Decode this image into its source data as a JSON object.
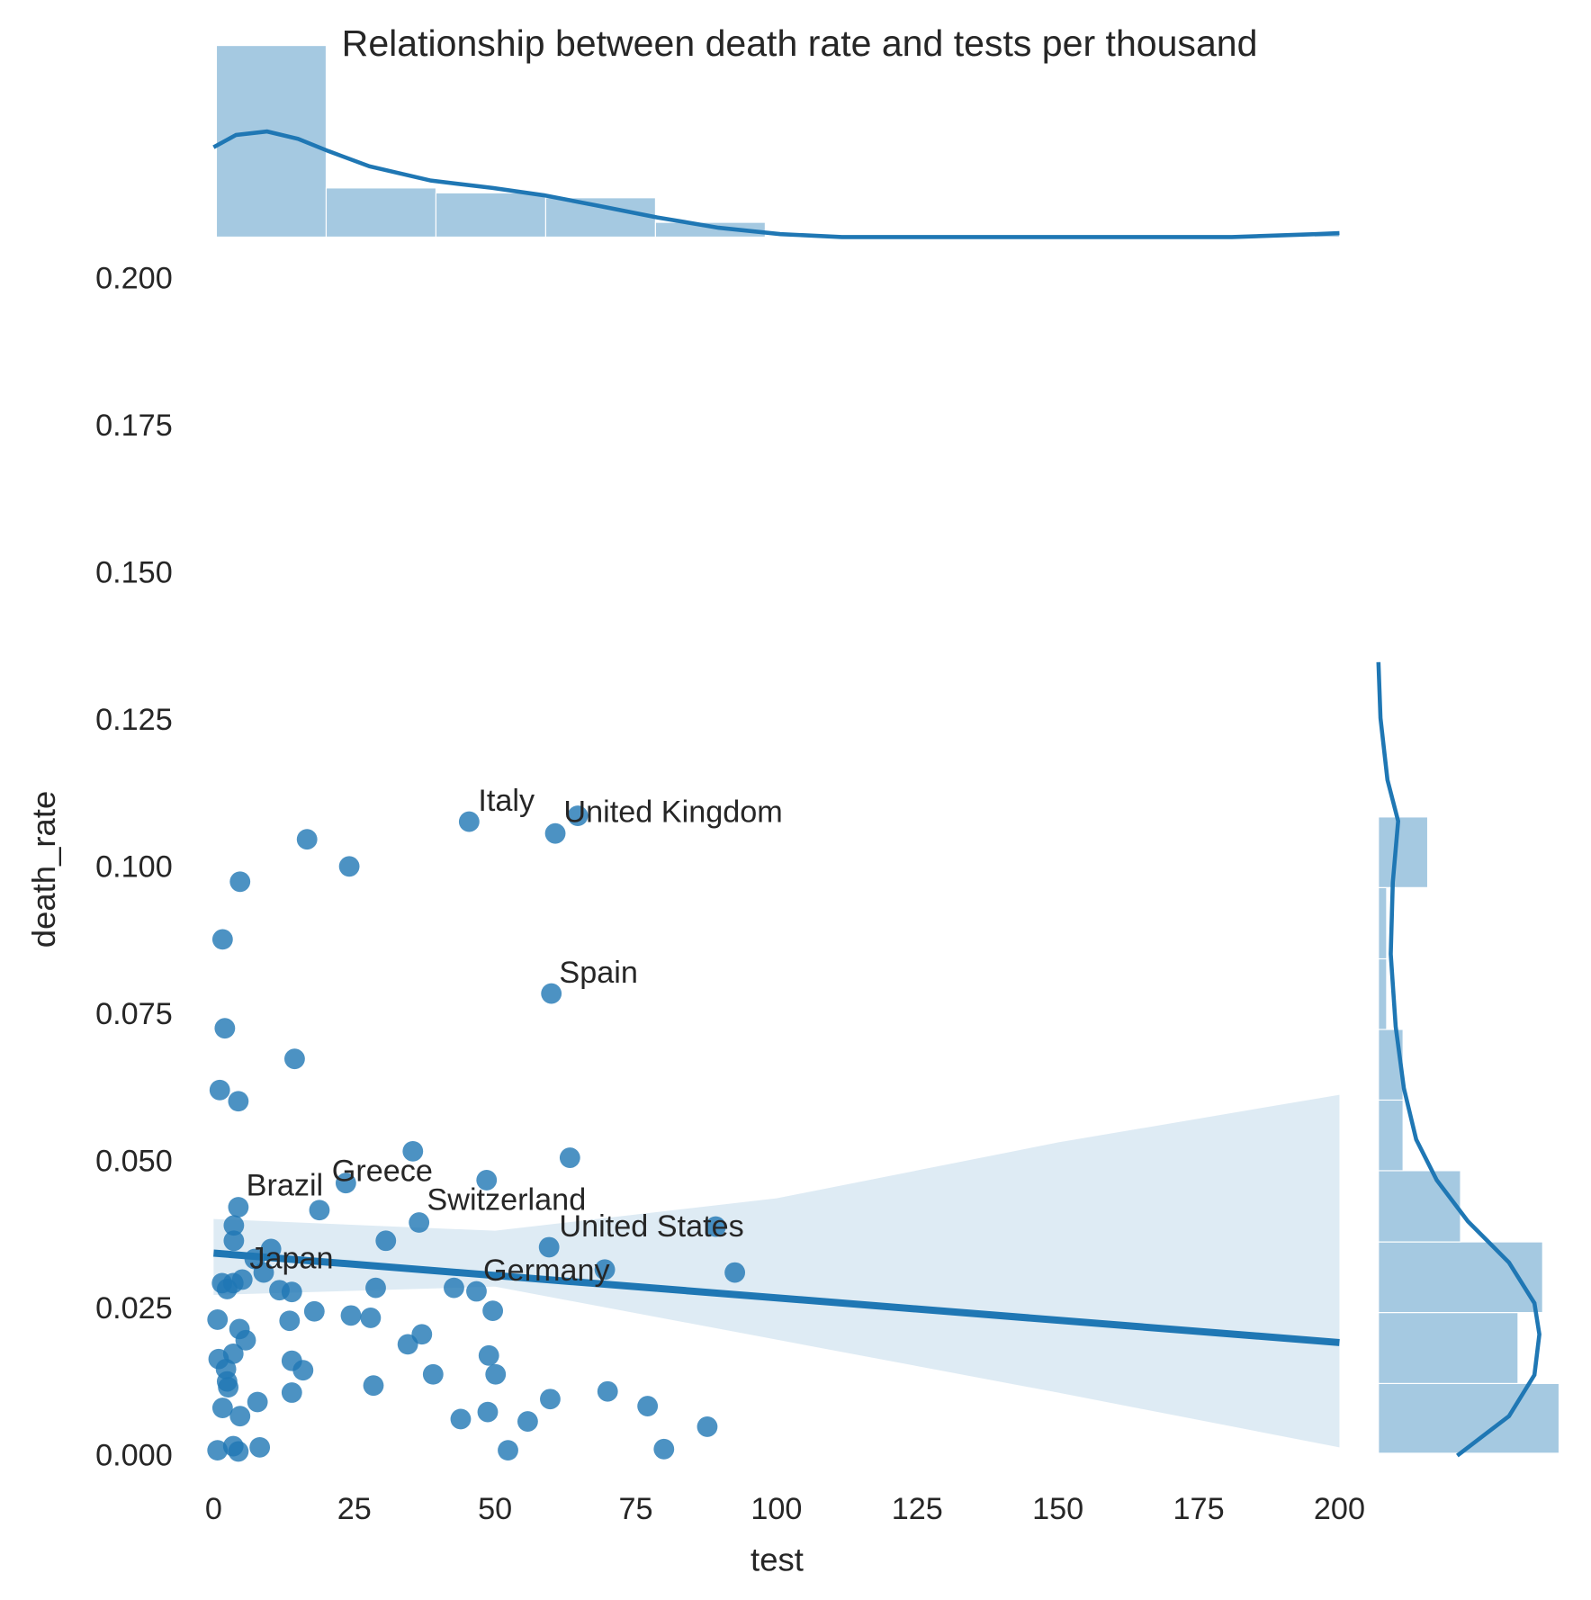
{
  "chart_data": [
    {
      "type": "scatter",
      "title": "Relationship between death rate and tests per thousand",
      "xlabel": "test",
      "ylabel": "death_rate",
      "color": "#1f77b4",
      "x": [
        45.4,
        60.7,
        64.7,
        16.6,
        24.1,
        4.7,
        1.6,
        60.0,
        2.0,
        14.4,
        1.1,
        4.4,
        35.4,
        63.3,
        48.5,
        23.5,
        4.4,
        18.8,
        3.6,
        36.5,
        89.2,
        30.6,
        3.6,
        59.6,
        10.2,
        69.5,
        92.6,
        7.3,
        8.9,
        5.1,
        1.5,
        3.5,
        2.4,
        11.7,
        13.9,
        28.8,
        42.7,
        46.7,
        49.6,
        17.9,
        24.4,
        27.9,
        13.5,
        0.7,
        4.6,
        5.7,
        37.0,
        34.5,
        3.5,
        48.9,
        0.9,
        13.9,
        15.9,
        2.2,
        50.1,
        39.0,
        2.4,
        2.6,
        28.4,
        70.0,
        13.9,
        59.8,
        7.8,
        77.1,
        1.6,
        48.7,
        4.7,
        43.9,
        55.8,
        87.7,
        8.2,
        3.5,
        52.3,
        80.0,
        0.7,
        4.4
      ],
      "y": [
        0.108,
        0.106,
        0.109,
        0.105,
        0.1004,
        0.0978,
        0.088,
        0.0788,
        0.0729,
        0.0677,
        0.0624,
        0.0605,
        0.052,
        0.0509,
        0.0471,
        0.0466,
        0.0425,
        0.042,
        0.0394,
        0.0399,
        0.0392,
        0.0368,
        0.0368,
        0.0357,
        0.0354,
        0.0319,
        0.0314,
        0.0337,
        0.0314,
        0.0302,
        0.0296,
        0.0296,
        0.0286,
        0.0284,
        0.0281,
        0.0288,
        0.0288,
        0.0282,
        0.0249,
        0.0248,
        0.0241,
        0.0237,
        0.0232,
        0.0234,
        0.0218,
        0.0199,
        0.0209,
        0.0192,
        0.0176,
        0.0173,
        0.0167,
        0.0164,
        0.0148,
        0.015,
        0.0141,
        0.0141,
        0.0129,
        0.0119,
        0.0122,
        0.0112,
        0.011,
        0.0099,
        0.0094,
        0.0087,
        0.0084,
        0.0077,
        0.007,
        0.0065,
        0.0061,
        0.0052,
        0.0017,
        0.0019,
        0.0012,
        0.0014,
        0.0012,
        0.001
      ],
      "annotations": [
        {
          "text": "Italy",
          "x": 47.0,
          "y": 0.1112
        },
        {
          "text": "United Kingdom",
          "x": 62.2,
          "y": 0.1093
        },
        {
          "text": "Spain",
          "x": 61.4,
          "y": 0.082
        },
        {
          "text": "Greece",
          "x": 21.0,
          "y": 0.0483
        },
        {
          "text": "Brazil",
          "x": 5.8,
          "y": 0.0459
        },
        {
          "text": "Switzerland",
          "x": 37.9,
          "y": 0.0434
        },
        {
          "text": "United States",
          "x": 61.4,
          "y": 0.0389
        },
        {
          "text": "Japan",
          "x": 6.4,
          "y": 0.0335
        },
        {
          "text": "Germany",
          "x": 47.9,
          "y": 0.0314
        }
      ],
      "regression": {
        "x": [
          0,
          200
        ],
        "y": [
          0.0347,
          0.0195
        ],
        "ci_x": [
          0,
          50,
          100,
          150,
          200
        ],
        "ci_upper": [
          0.0405,
          0.0385,
          0.044,
          0.0535,
          0.0616
        ],
        "ci_lower": [
          0.0276,
          0.029,
          0.02,
          0.011,
          0.0017
        ]
      },
      "xlim": [
        0,
        200
      ],
      "xticks": [
        0,
        25,
        50,
        75,
        100,
        125,
        150,
        175,
        200
      ],
      "ylim": [
        0,
        0.2
      ],
      "yticks": [
        {
          "value": 0,
          "label": "0.000"
        },
        {
          "value": 0.025,
          "label": "0.025"
        },
        {
          "value": 0.05,
          "label": "0.050"
        },
        {
          "value": 0.075,
          "label": "0.075"
        },
        {
          "value": 0.1,
          "label": "0.100"
        },
        {
          "value": 0.125,
          "label": "0.125"
        },
        {
          "value": 0.15,
          "label": "0.150"
        },
        {
          "value": 0.175,
          "label": "0.175"
        },
        {
          "value": 0.2,
          "label": "0.200"
        }
      ]
    },
    {
      "type": "histogram",
      "orientation": "vertical",
      "color": "#1f77b4",
      "bins": [
        0.5,
        20,
        39.5,
        59,
        78.5,
        98,
        117.5,
        137,
        156.5,
        176,
        195.5,
        200
      ],
      "counts": [
        39,
        10,
        9,
        8,
        3,
        0,
        0,
        0,
        0,
        0,
        1
      ],
      "ylim": [
        0,
        42
      ],
      "kde_x": [
        0,
        4,
        9.5,
        15,
        20.4,
        27.7,
        38.6,
        49.6,
        58.7,
        67.8,
        78.8,
        89.7,
        100.7,
        111.6,
        144.4,
        180.9,
        195.8,
        200
      ],
      "kde_y": [
        18.3,
        20.8,
        21.5,
        20,
        17.5,
        14.4,
        11.5,
        10,
        8.5,
        6.5,
        4,
        1.9,
        0.6,
        0,
        0,
        0,
        0.6,
        0.8
      ]
    },
    {
      "type": "histogram",
      "orientation": "horizontal",
      "color": "#1f77b4",
      "bins": [
        0.0007,
        0.01255,
        0.0246,
        0.0366,
        0.0487,
        0.0607,
        0.0727,
        0.0847,
        0.0968,
        0.1088
      ],
      "counts": [
        22,
        17,
        20,
        10,
        3,
        3,
        1,
        1,
        6
      ],
      "xlim": [
        0,
        23
      ],
      "kde_x": [
        0.1351,
        0.1256,
        0.1151,
        0.1081,
        0.0977,
        0.0855,
        0.0732,
        0.0627,
        0.054,
        0.0471,
        0.0401,
        0.0331,
        0.0262,
        0.0209,
        0.014,
        0.007,
        0.0003
      ],
      "kde_y": [
        0,
        0.25,
        1.1,
        2.4,
        1.75,
        1.5,
        2.1,
        3.1,
        4.6,
        7.1,
        10.9,
        15.9,
        19,
        19.6,
        19,
        15.9,
        9.6
      ]
    }
  ]
}
